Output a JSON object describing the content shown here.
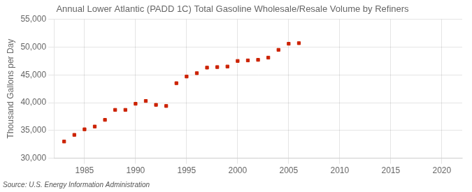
{
  "chart_data": {
    "type": "scatter",
    "title": "Annual Lower Atlantic (PADD 1C) Total Gasoline Wholesale/Resale Volume by Refiners",
    "ylabel": "Thousand Gallons per Day",
    "source": "Source: U.S. Energy Information Administration",
    "x": [
      1983,
      1984,
      1985,
      1986,
      1987,
      1988,
      1989,
      1990,
      1991,
      1992,
      1993,
      1994,
      1995,
      1996,
      1997,
      1998,
      1999,
      2000,
      2001,
      2002,
      2003,
      2004,
      2005,
      2006
    ],
    "values": [
      33000,
      34200,
      35200,
      35700,
      36900,
      38700,
      38700,
      39800,
      40300,
      39600,
      39400,
      43500,
      44700,
      45300,
      46300,
      46400,
      46500,
      47500,
      47600,
      47700,
      48100,
      49500,
      50600,
      50700
    ],
    "color": "#cc2200",
    "marker": "square",
    "xlim": [
      1982,
      2022
    ],
    "xticks": [
      1985,
      1990,
      1995,
      2000,
      2005,
      2010,
      2015,
      2020
    ],
    "ylim": [
      30000,
      55000
    ],
    "yticks": [
      {
        "value": 30000,
        "label": "30,000"
      },
      {
        "value": 35000,
        "label": "35,000"
      },
      {
        "value": 40000,
        "label": "40,000"
      },
      {
        "value": 45000,
        "label": "45,000"
      },
      {
        "value": 50000,
        "label": "50,000"
      },
      {
        "value": 55000,
        "label": "55,000"
      }
    ],
    "grid": true
  }
}
